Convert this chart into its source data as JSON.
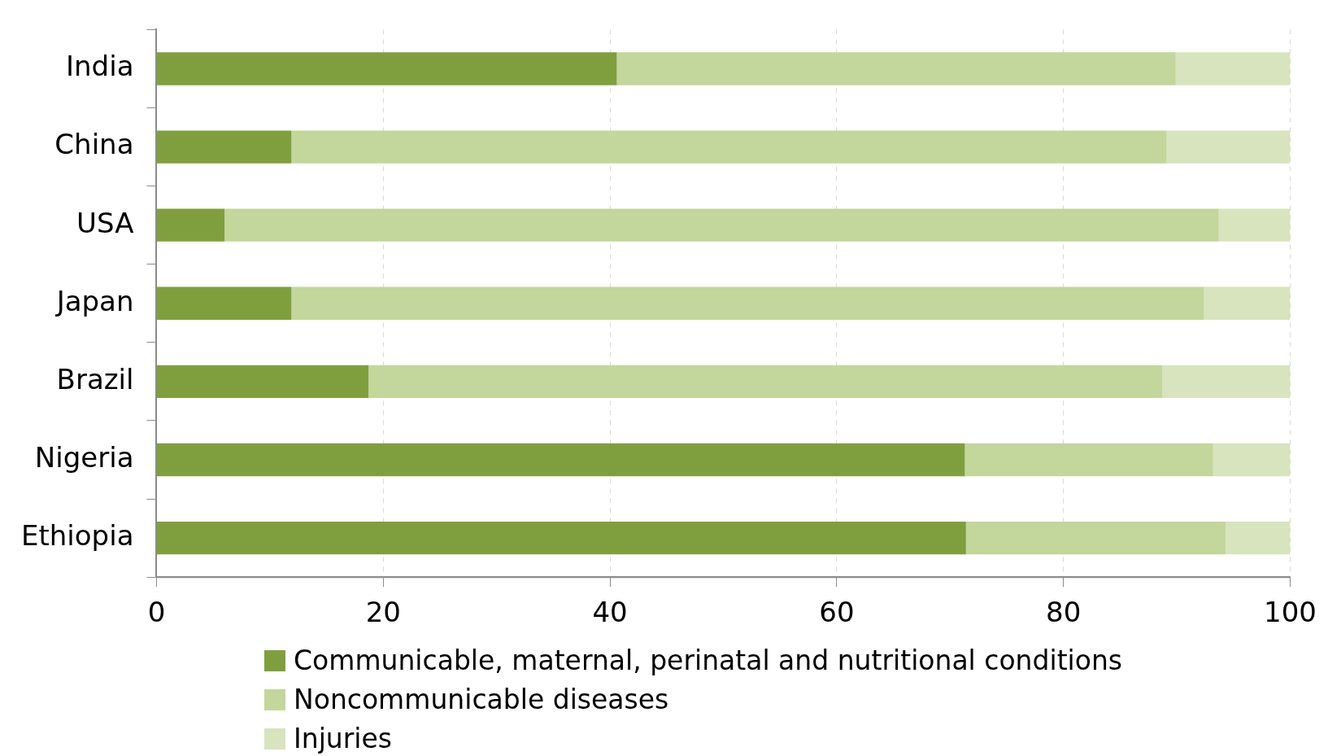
{
  "chart_data": {
    "type": "bar",
    "orientation": "horizontal",
    "stacked": true,
    "categories": [
      "India",
      "China",
      "USA",
      "Japan",
      "Brazil",
      "Nigeria",
      "Ethiopia"
    ],
    "series": [
      {
        "name": "Communicable, maternal, perinatal and nutritional conditions",
        "color": "#7f9f3f",
        "values": [
          40.6,
          11.9,
          6.0,
          11.9,
          18.7,
          71.3,
          71.4
        ]
      },
      {
        "name": "Noncommunicable diseases",
        "color": "#c3d69b",
        "values": [
          49.3,
          77.2,
          87.7,
          80.5,
          70.0,
          21.9,
          22.9
        ]
      },
      {
        "name": "Injuries",
        "color": "#d7e4bd",
        "values": [
          10.1,
          10.9,
          6.3,
          7.6,
          11.3,
          6.8,
          5.7
        ]
      }
    ],
    "xlim": [
      0,
      100
    ],
    "xticks": [
      0,
      20,
      40,
      60,
      80,
      100
    ],
    "grid": "x",
    "legend": "bottom"
  }
}
